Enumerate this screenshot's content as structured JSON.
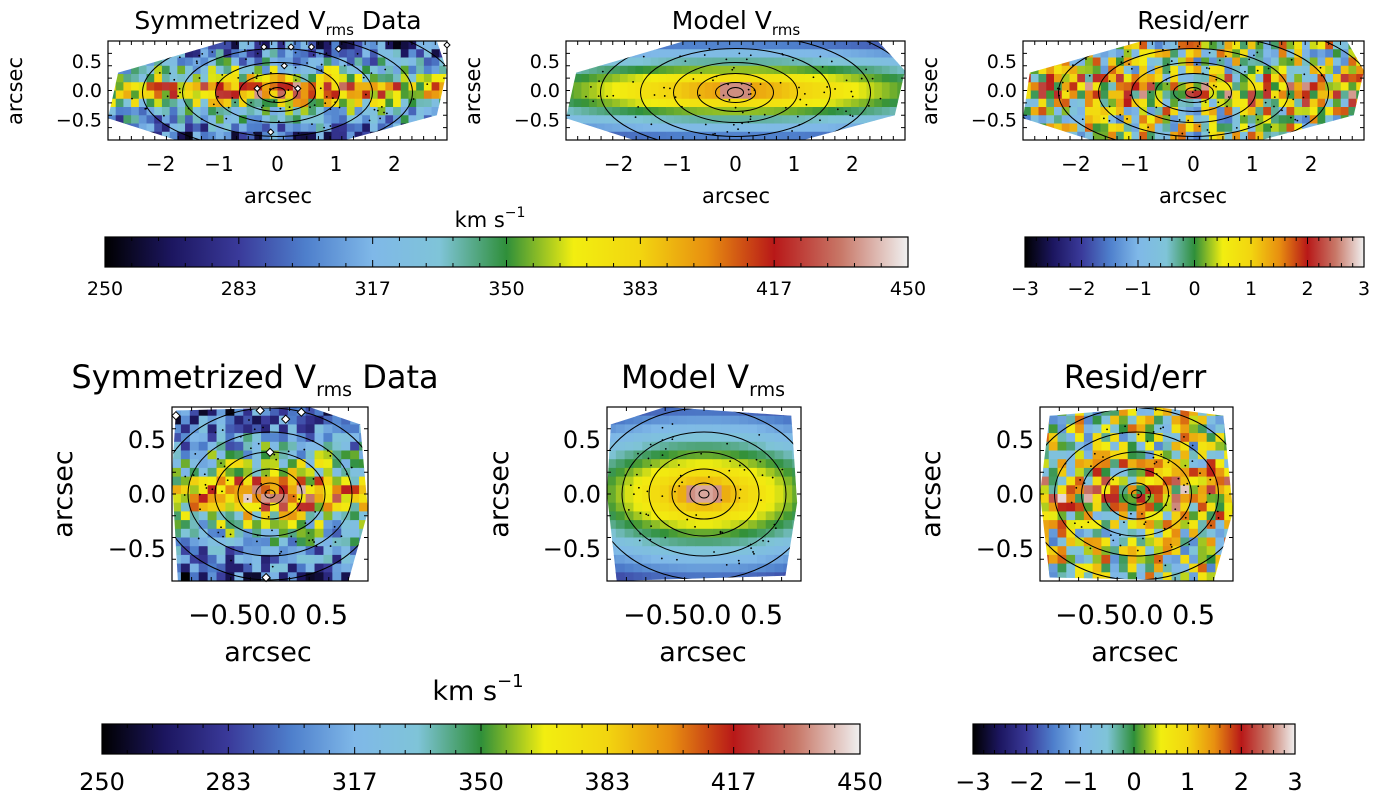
{
  "chart_data": [
    {
      "type": "heatmap",
      "row": "top",
      "panel": "data",
      "title": "Symmetrized V",
      "title_sub": "rms",
      "title_suffix": " Data",
      "xlabel": "arcsec",
      "ylabel": "arcsec",
      "xlim": [
        -2.9,
        2.9
      ],
      "ylim": [
        -0.85,
        0.85
      ],
      "xticks": [
        -2,
        -1,
        0,
        1,
        2
      ],
      "yticks": [
        0.5,
        0.0,
        -0.5
      ],
      "xtick_labels": [
        "−2",
        "−1",
        "0",
        "1",
        "2"
      ],
      "ytick_labels": [
        "0.5",
        "0.0",
        "−0.5"
      ]
    },
    {
      "type": "heatmap",
      "row": "top",
      "panel": "model",
      "title": "Model V",
      "title_sub": "rms",
      "title_suffix": "",
      "xlabel": "arcsec",
      "ylabel": "arcsec",
      "xlim": [
        -2.9,
        2.9
      ],
      "ylim": [
        -0.85,
        0.85
      ],
      "xticks": [
        -2,
        -1,
        0,
        1,
        2
      ],
      "yticks": [
        0.5,
        0.0,
        -0.5
      ],
      "xtick_labels": [
        "−2",
        "−1",
        "0",
        "1",
        "2"
      ],
      "ytick_labels": [
        "0.5",
        "0.0",
        "−0.5"
      ]
    },
    {
      "type": "heatmap",
      "row": "top",
      "panel": "resid",
      "title": "Resid/err",
      "title_sub": "",
      "title_suffix": "",
      "xlabel": "arcsec",
      "ylabel": "arcsec",
      "xlim": [
        -2.9,
        2.9
      ],
      "ylim": [
        -0.85,
        0.85
      ],
      "xticks": [
        -2,
        -1,
        0,
        1,
        2
      ],
      "yticks": [
        0.5,
        0.0,
        -0.5
      ],
      "xtick_labels": [
        "−2",
        "−1",
        "0",
        "1",
        "2"
      ],
      "ytick_labels": [
        "0.5",
        "0.0",
        "−0.5"
      ]
    },
    {
      "type": "heatmap",
      "row": "bottom",
      "panel": "data",
      "title": "Symmetrized V",
      "title_sub": "rms",
      "title_suffix": " Data",
      "xlabel": "arcsec",
      "ylabel": "arcsec",
      "xlim": [
        -1.0,
        0.85
      ],
      "ylim": [
        -0.8,
        0.8
      ],
      "xtick_labels_text": "−0.50.0 0.5",
      "yticks": [
        0.5,
        0.0,
        -0.5
      ],
      "ytick_labels": [
        "0.5",
        "0.0",
        "−0.5"
      ]
    },
    {
      "type": "heatmap",
      "row": "bottom",
      "panel": "model",
      "title": "Model V",
      "title_sub": "rms",
      "title_suffix": "",
      "xlabel": "arcsec",
      "ylabel": "arcsec",
      "xlim": [
        -1.0,
        0.85
      ],
      "ylim": [
        -0.8,
        0.8
      ],
      "xtick_labels_text": "−0.50.0 0.5",
      "yticks": [
        0.5,
        0.0,
        -0.5
      ],
      "ytick_labels": [
        "0.5",
        "0.0",
        "−0.5"
      ]
    },
    {
      "type": "heatmap",
      "row": "bottom",
      "panel": "resid",
      "title": "Resid/err",
      "title_sub": "",
      "title_suffix": "",
      "xlabel": "arcsec",
      "ylabel": "arcsec",
      "xlim": [
        -1.0,
        0.85
      ],
      "ylim": [
        -0.8,
        0.8
      ],
      "xtick_labels_text": "−0.50.0 0.5",
      "yticks": [
        0.5,
        0.0,
        -0.5
      ],
      "ytick_labels": [
        "0.5",
        "0.0",
        "−0.5"
      ]
    }
  ],
  "colorbars": {
    "velocity": {
      "unit_label": "km s",
      "unit_exp": "−1",
      "range": [
        250,
        450
      ],
      "tick_labels": [
        "250",
        "283",
        "317",
        "350",
        "383",
        "417",
        "450"
      ]
    },
    "residual": {
      "range": [
        -3,
        3
      ],
      "tick_labels": [
        "−3",
        "−2",
        "−1",
        "0",
        "1",
        "2",
        "3"
      ]
    }
  },
  "colors": {
    "colormap": [
      "#000000",
      "#1c1660",
      "#3a3a9a",
      "#4e7fcc",
      "#7fb8e8",
      "#7fc4d8",
      "#2f8f3a",
      "#f2ee10",
      "#f2d510",
      "#e88f10",
      "#b81818",
      "#c87868",
      "#f0f0f0"
    ],
    "contour": "#000000",
    "bins": "#000000"
  }
}
